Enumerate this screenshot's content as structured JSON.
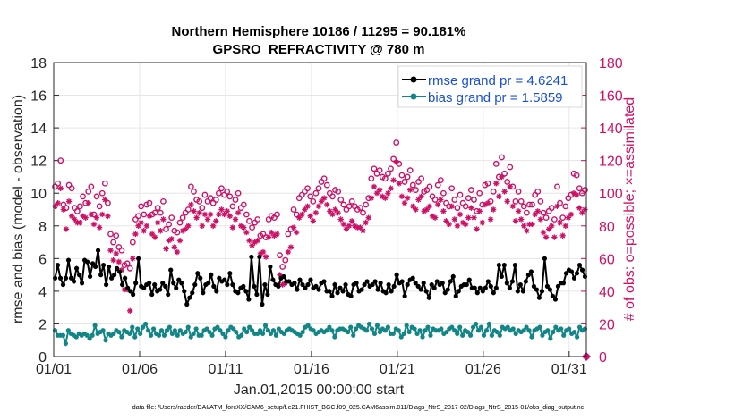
{
  "chart_data": {
    "type": "line",
    "title": "Northern Hemisphere 10186 / 11295 = 90.181%",
    "subtitle": "GPSRO_REFRACTIVITY @ 780 m",
    "xlabel": "Jan.01,2015 00:00:00 start",
    "ylabel": "rmse and bias (model - observation)",
    "ylabel_right": "# of obs: o=possible; ×=assimilated",
    "footer": "data file: /Users/raeder/DAI/ATM_forcXX/CAM6_setup/f.e21.FHIST_BGC.f09_025.CAM6assim.011/Diags_NtrS_2017-02/Diags_NtrS_2015-01/obs_diag_output.nc",
    "xlim": [
      0,
      31
    ],
    "ylim": [
      0,
      18
    ],
    "ylim_right": [
      0,
      180
    ],
    "x_ticks": [
      0,
      5,
      10,
      15,
      20,
      25,
      30
    ],
    "x_tick_labels": [
      "01/01",
      "01/06",
      "01/11",
      "01/16",
      "01/21",
      "01/26",
      "01/31"
    ],
    "y_ticks": [
      0,
      2,
      4,
      6,
      8,
      10,
      12,
      14,
      16,
      18
    ],
    "y_ticks_right": [
      0,
      20,
      40,
      60,
      80,
      100,
      120,
      140,
      160,
      180
    ],
    "grid": true,
    "legend_position": "top-right",
    "series": [
      {
        "name": "rmse grand pr = 4.6241",
        "color": "#000000",
        "axis": "left",
        "values": [
          4.8,
          5.6,
          4.8,
          4.4,
          4.8,
          5.9,
          4.8,
          4.6,
          5.4,
          5.0,
          4.5,
          5.9,
          5.8,
          4.9,
          5.7,
          5.5,
          6.5,
          5.0,
          5.6,
          4.4,
          5.5,
          4.8,
          5.0,
          5.4,
          5.2,
          4.4,
          4.8,
          4.2,
          4.0,
          3.8,
          4.5,
          6.0,
          4.3,
          4.2,
          4.4,
          4.5,
          3.8,
          4.4,
          4.0,
          4.1,
          4.5,
          4.3,
          3.8,
          5.3,
          4.5,
          4.2,
          4.7,
          4.5,
          4.0,
          3.2,
          3.6,
          3.9,
          4.4,
          5.1,
          4.8,
          3.9,
          4.4,
          4.5,
          5.0,
          4.3,
          4.0,
          4.8,
          4.6,
          4.7,
          4.4,
          5.1,
          4.4,
          4.0,
          3.9,
          4.2,
          4.3,
          4.0,
          3.5,
          6.1,
          4.3,
          3.8,
          6.1,
          3.2,
          4.4,
          3.8,
          5.5,
          4.7,
          4.4,
          4.3,
          4.8,
          4.9,
          4.6,
          4.6,
          4.4,
          4.5,
          4.1,
          4.7,
          4.4,
          4.2,
          4.4,
          4.7,
          4.2,
          4.3,
          4.1,
          4.5,
          4.6,
          4.0,
          4.0,
          3.7,
          4.4,
          3.9,
          4.2,
          4.0,
          4.4,
          3.8,
          3.7,
          4.4,
          4.5,
          4.0,
          4.1,
          4.4,
          4.6,
          4.3,
          4.4,
          4.6,
          4.1,
          4.5,
          4.0,
          3.9,
          4.4,
          4.0,
          4.3,
          5.0,
          4.5,
          4.6,
          3.7,
          4.4,
          4.7,
          4.8,
          4.5,
          4.3,
          4.1,
          4.5,
          4.0,
          3.6,
          4.4,
          4.2,
          4.6,
          4.4,
          4.5,
          3.9,
          4.1,
          4.6,
          4.9,
          3.7,
          4.0,
          4.3,
          4.4,
          4.4,
          4.7,
          4.2,
          4.2,
          3.9,
          4.2,
          4.0,
          4.2,
          4.6,
          4.3,
          3.9,
          4.2,
          5.6,
          4.9,
          5.6,
          4.5,
          4.2,
          4.6,
          5.6,
          4.0,
          4.4,
          4.0,
          4.6,
          5.0,
          5.2,
          4.3,
          4.1,
          3.6,
          4.0,
          6.0,
          4.3,
          4.1,
          3.7,
          3.5,
          4.3,
          4.5,
          4.5,
          5.1,
          5.3,
          5.2,
          4.8,
          5.1,
          5.6,
          5.3,
          4.9
        ]
      },
      {
        "name": "bias grand pr = 1.5859",
        "color": "#128686",
        "axis": "left",
        "values": [
          1.6,
          1.3,
          1.3,
          1.3,
          0.8,
          1.6,
          1.4,
          1.3,
          1.2,
          1.4,
          1.3,
          1.4,
          1.3,
          1.1,
          1.3,
          1.9,
          1.4,
          1.5,
          1.6,
          1.0,
          1.4,
          1.3,
          1.4,
          1.6,
          1.5,
          1.2,
          1.6,
          1.5,
          1.4,
          1.8,
          1.2,
          1.7,
          1.4,
          1.8,
          2.0,
          1.6,
          1.3,
          1.7,
          1.4,
          1.3,
          1.6,
          1.3,
          1.6,
          1.8,
          1.4,
          1.6,
          1.3,
          1.6,
          1.4,
          1.5,
          1.8,
          1.2,
          1.4,
          1.7,
          1.3,
          1.3,
          1.6,
          1.7,
          1.5,
          1.3,
          1.7,
          1.8,
          1.6,
          1.4,
          1.2,
          1.6,
          1.8,
          1.7,
          1.5,
          1.2,
          1.3,
          1.7,
          1.5,
          1.8,
          1.6,
          1.4,
          1.4,
          1.6,
          1.4,
          1.9,
          1.6,
          1.4,
          1.6,
          1.3,
          1.7,
          1.5,
          1.4,
          1.6,
          1.7,
          1.6,
          1.5,
          1.4,
          1.3,
          1.5,
          1.8,
          1.9,
          1.7,
          1.6,
          1.4,
          1.5,
          1.6,
          1.5,
          1.6,
          1.8,
          1.6,
          1.2,
          1.6,
          1.7,
          1.7,
          1.6,
          1.5,
          1.8,
          1.3,
          1.7,
          1.9,
          1.8,
          1.7,
          1.6,
          2.0,
          1.7,
          1.4,
          1.9,
          1.5,
          1.7,
          1.6,
          1.8,
          1.4,
          1.4,
          1.7,
          1.6,
          1.2,
          1.4,
          1.9,
          1.5,
          1.8,
          1.7,
          1.4,
          1.6,
          1.2,
          1.6,
          1.8,
          1.3,
          1.7,
          1.6,
          1.6,
          1.7,
          1.4,
          1.5,
          1.7,
          1.8,
          1.6,
          1.4,
          1.8,
          1.3,
          1.6,
          1.5,
          1.3,
          1.8,
          2.0,
          1.6,
          1.8,
          1.3,
          1.6,
          2.0,
          1.3,
          1.6,
          1.5,
          1.3,
          1.8,
          1.7,
          1.8,
          1.6,
          1.7,
          1.4,
          1.6,
          1.5,
          1.6,
          1.8,
          1.6,
          1.2,
          1.6,
          1.7,
          1.8,
          1.3,
          1.5,
          1.6,
          1.1,
          1.5,
          1.8,
          1.6,
          1.7,
          1.3,
          1.6,
          1.7,
          1.4,
          1.5,
          1.2,
          1.8,
          1.6,
          1.7
        ]
      },
      {
        "name": "# possible",
        "color": "#cc1166",
        "axis": "right",
        "marker": "o",
        "values": [
          104,
          106,
          120,
          93,
          91,
          105,
          103,
          91,
          89,
          92,
          98,
          94,
          101,
          104,
          87,
          98,
          92,
          100,
          106,
          94,
          75,
          70,
          74,
          67,
          65,
          56,
          57,
          54,
          70,
          84,
          86,
          92,
          87,
          93,
          94,
          87,
          88,
          91,
          88,
          95,
          78,
          81,
          85,
          77,
          76,
          82,
          85,
          88,
          90,
          104,
          101,
          96,
          95,
          91,
          99,
          95,
          97,
          94,
          96,
          100,
          103,
          99,
          101,
          98,
          92,
          96,
          100,
          91,
          93,
          87,
          83,
          79,
          82,
          84,
          74,
          75,
          73,
          84,
          86,
          85,
          87,
          62,
          55,
          59,
          75,
          78,
          90,
          87,
          97,
          99,
          101,
          103,
          98,
          95,
          100,
          103,
          107,
          109,
          105,
          100,
          98,
          102,
          101,
          96,
          93,
          90,
          92,
          95,
          92,
          90,
          91,
          88,
          93,
          97,
          109,
          115,
          112,
          114,
          110,
          109,
          112,
          115,
          121,
          131,
          118,
          111,
          107,
          110,
          114,
          105,
          102,
          107,
          109,
          101,
          102,
          104,
          98,
          96,
          105,
          108,
          100,
          94,
          92,
          103,
          96,
          91,
          99,
          94,
          92,
          97,
          102,
          96,
          89,
          100,
          93,
          105,
          106,
          95,
          101,
          118,
          110,
          122,
          112,
          107,
          116,
          104,
          95,
          101,
          95,
          92,
          88,
          93,
          93,
          99,
          101,
          95,
          88,
          85,
          89,
          91,
          84,
          104,
          94,
          85,
          92,
          97,
          99,
          112,
          111,
          103,
          100,
          102
        ]
      },
      {
        "name": "# assimilated",
        "color": "#cc1166",
        "axis": "right",
        "marker": "x",
        "values": [
          92,
          94,
          103,
          90,
          78,
          95,
          86,
          84,
          82,
          82,
          86,
          85,
          94,
          87,
          81,
          85,
          79,
          87,
          96,
          86,
          65,
          59,
          63,
          58,
          53,
          41,
          41,
          28,
          60,
          75,
          80,
          82,
          77,
          80,
          86,
          75,
          73,
          82,
          77,
          84,
          66,
          71,
          72,
          67,
          64,
          71,
          77,
          78,
          80,
          93,
          89,
          85,
          88,
          80,
          87,
          84,
          87,
          80,
          83,
          87,
          90,
          87,
          89,
          86,
          79,
          84,
          88,
          80,
          79,
          76,
          71,
          68,
          70,
          71,
          63,
          64,
          61,
          73,
          76,
          74,
          75,
          50,
          44,
          45,
          64,
          67,
          79,
          76,
          85,
          87,
          90,
          92,
          86,
          83,
          88,
          92,
          95,
          97,
          93,
          89,
          87,
          90,
          88,
          84,
          81,
          78,
          80,
          83,
          80,
          79,
          79,
          77,
          82,
          85,
          97,
          104,
          100,
          102,
          98,
          97,
          100,
          103,
          108,
          119,
          106,
          98,
          94,
          97,
          102,
          92,
          90,
          96,
          98,
          89,
          90,
          92,
          86,
          85,
          93,
          96,
          89,
          83,
          81,
          92,
          84,
          80,
          87,
          82,
          81,
          85,
          91,
          85,
          78,
          89,
          82,
          93,
          94,
          84,
          90,
          106,
          98,
          110,
          101,
          95,
          104,
          92,
          83,
          89,
          84,
          80,
          77,
          81,
          81,
          87,
          89,
          84,
          76,
          73,
          78,
          80,
          73,
          92,
          82,
          74,
          80,
          85,
          87,
          100,
          99,
          91,
          88,
          90
        ]
      }
    ]
  }
}
